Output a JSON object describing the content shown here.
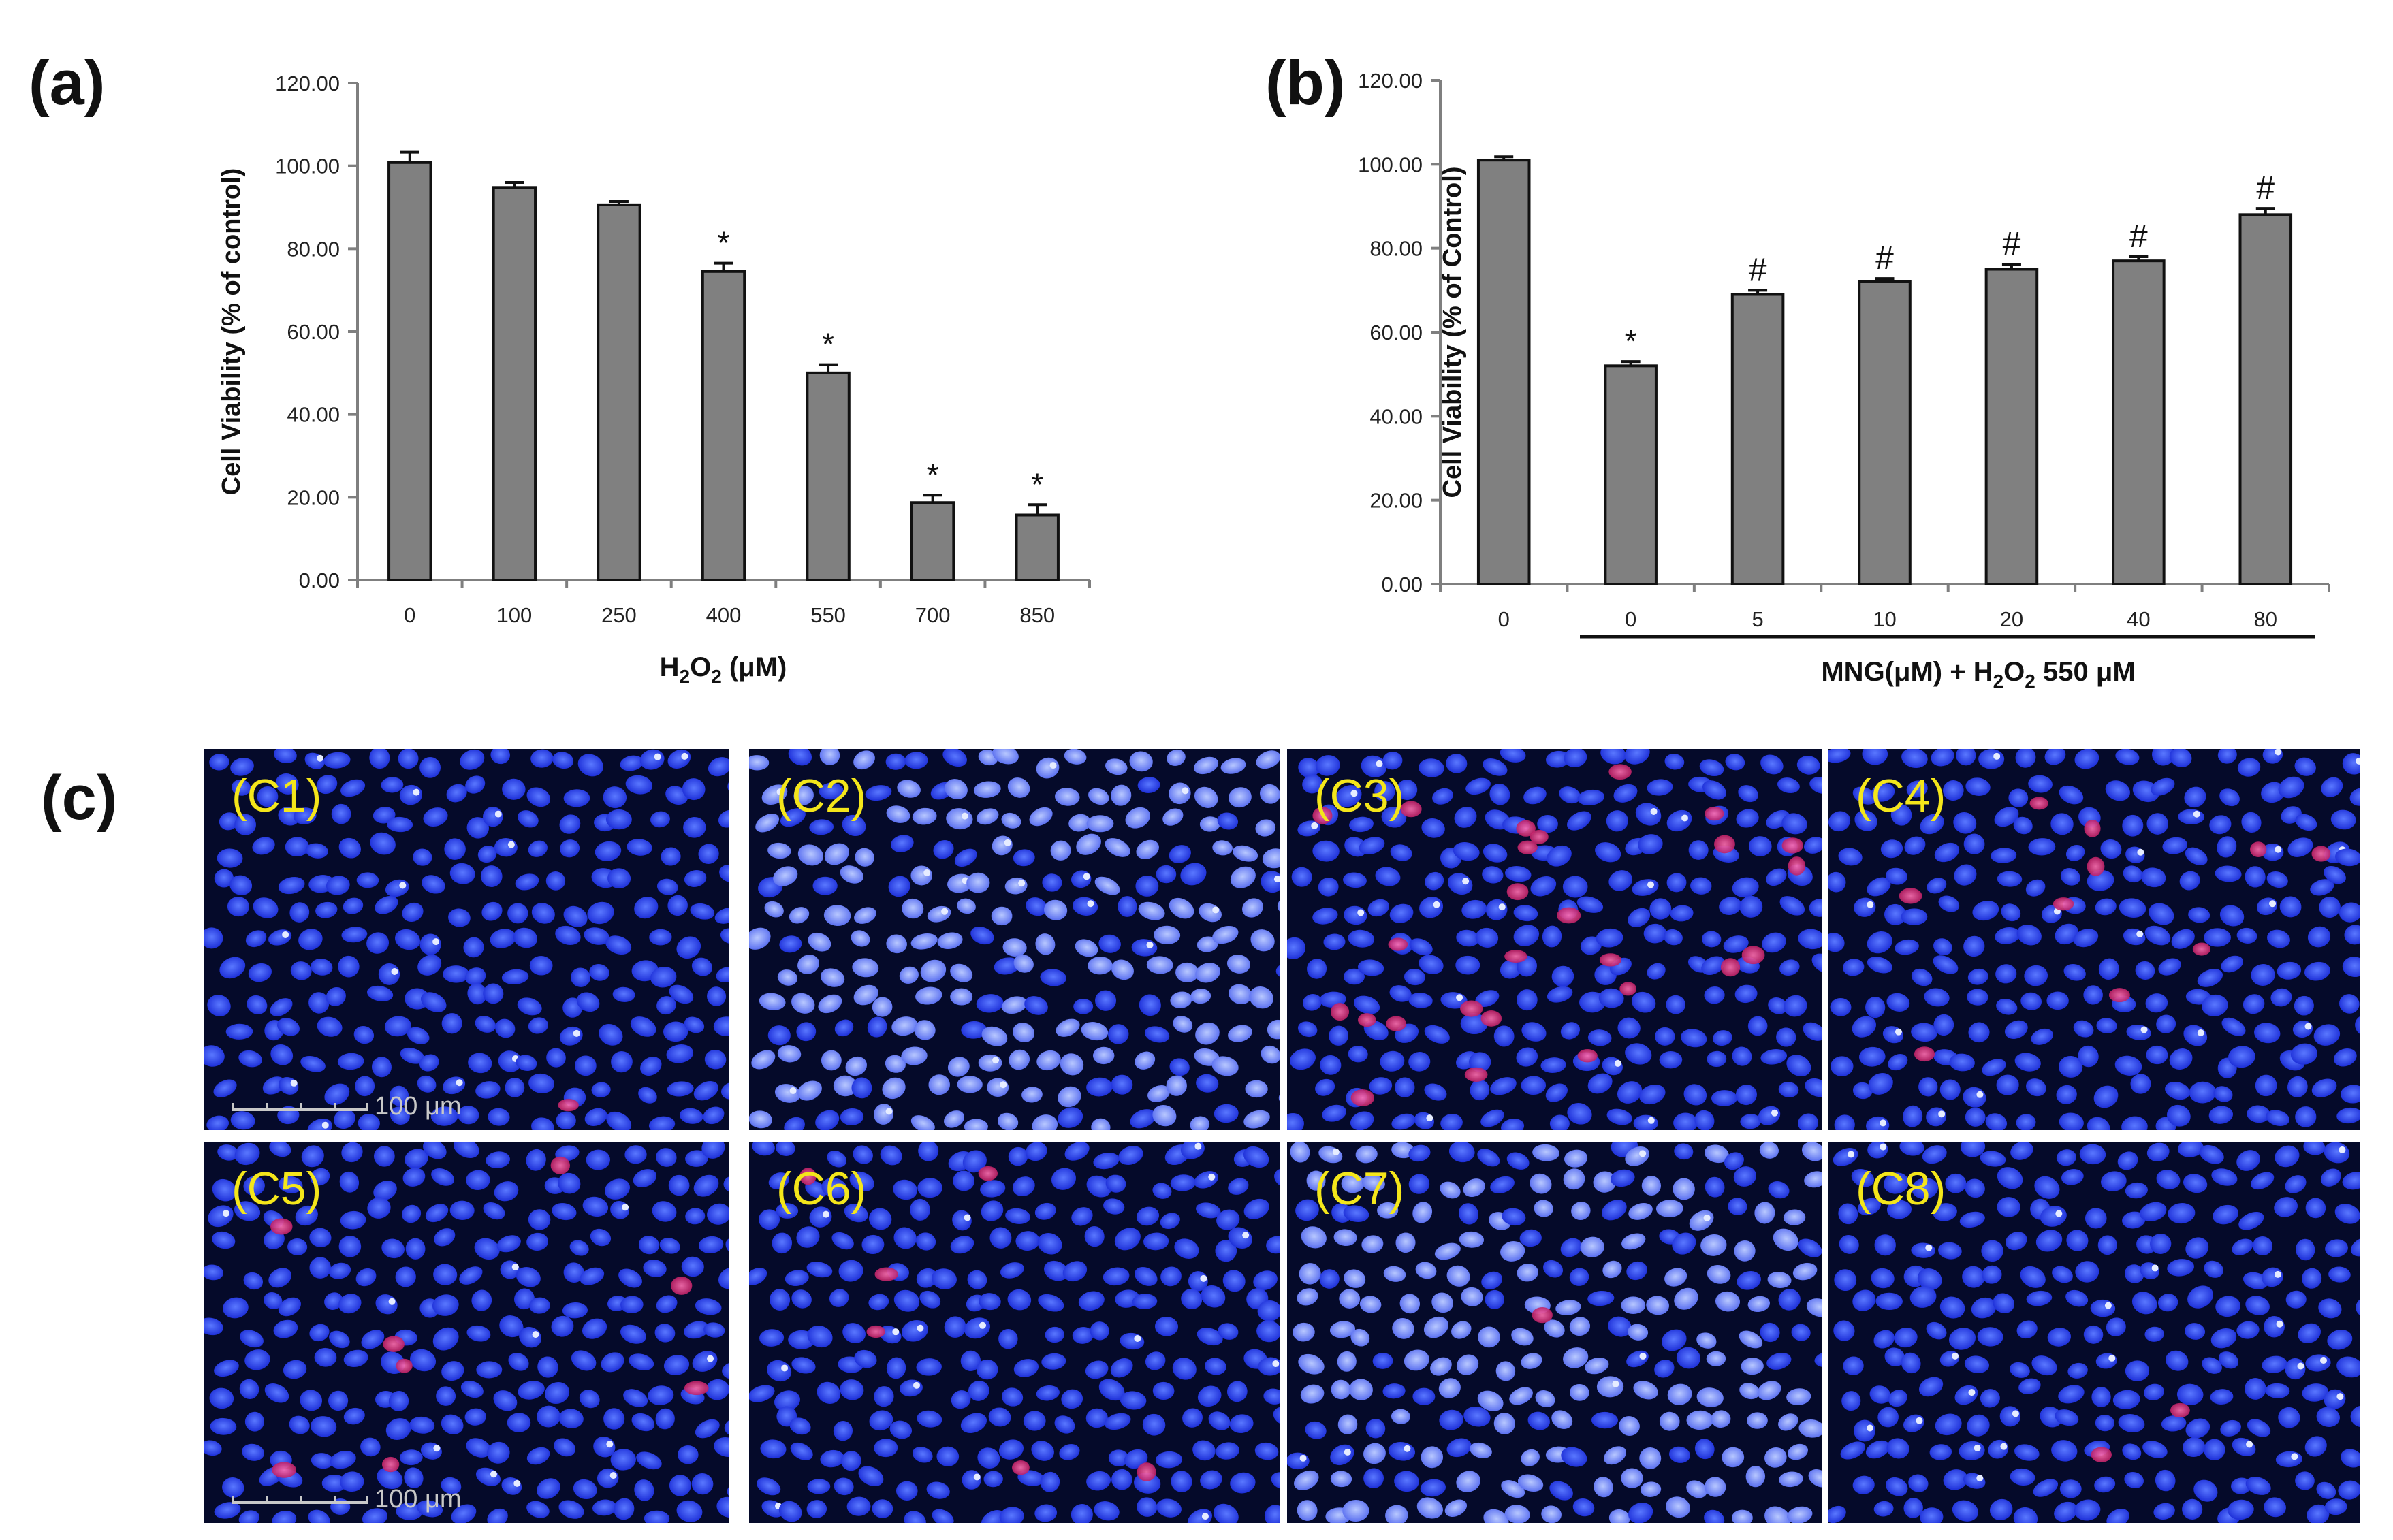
{
  "panel_labels": {
    "a": "(a)",
    "b": "(b)",
    "c": "(c)"
  },
  "chart_data": [
    {
      "type": "bar",
      "panel": "(a)",
      "categories": [
        "0",
        "100",
        "250",
        "400",
        "550",
        "700",
        "850"
      ],
      "values": [
        100.8,
        94.8,
        90.6,
        74.5,
        50.0,
        18.7,
        15.7
      ],
      "errors": [
        2.5,
        1.2,
        0.8,
        2.0,
        2.0,
        1.8,
        2.5
      ],
      "annotations": [
        "",
        "",
        "",
        "*",
        "*",
        "*",
        "*"
      ],
      "xlabel": {
        "prefix": "H",
        "sub1": "2",
        "mid": "O",
        "sub2": "2",
        "suffix": " (μM)"
      },
      "ylabel": "Cell Viability (% of control)",
      "ylim": [
        0,
        120
      ],
      "yticks": [
        "0.00",
        "20.00",
        "40.00",
        "60.00",
        "80.00",
        "100.00",
        "120.00"
      ]
    },
    {
      "type": "bar",
      "panel": "(b)",
      "categories": [
        "0",
        "0",
        "5",
        "10",
        "20",
        "40",
        "80"
      ],
      "values": [
        101.0,
        52.0,
        69.0,
        72.0,
        75.0,
        77.0,
        88.0
      ],
      "errors": [
        0.8,
        1.0,
        1.0,
        0.8,
        1.2,
        1.0,
        1.5
      ],
      "annotations": [
        "",
        "*",
        "#",
        "#",
        "#",
        "#",
        "#"
      ],
      "xlabel": {
        "prefix": "MNG(μM) + H",
        "sub1": "2",
        "mid": "O",
        "sub2": "2",
        "suffix": " 550 μM"
      },
      "ylabel": "Cell Viability (% of Control)",
      "ylim": [
        0,
        120
      ],
      "yticks": [
        "0.00",
        "20.00",
        "40.00",
        "60.00",
        "80.00",
        "100.00",
        "120.00"
      ]
    }
  ],
  "micrographs": [
    {
      "label": "(C1)",
      "scale_text": "100 μm",
      "red_cells": 1
    },
    {
      "label": "(C2)",
      "scale_text": "",
      "red_cells": 0
    },
    {
      "label": "(C3)",
      "scale_text": "",
      "red_cells": 26
    },
    {
      "label": "(C4)",
      "scale_text": "",
      "red_cells": 10
    },
    {
      "label": "(C5)",
      "scale_text": "100 μm",
      "red_cells": 8
    },
    {
      "label": "(C6)",
      "scale_text": "",
      "red_cells": 6
    },
    {
      "label": "(C7)",
      "scale_text": "",
      "red_cells": 1
    },
    {
      "label": "(C8)",
      "scale_text": "",
      "red_cells": 2
    }
  ],
  "colors": {
    "bar": "#808080",
    "nucleus": "#2f4df0",
    "apoptotic": "#e0287a",
    "label": "#f4e61a"
  }
}
